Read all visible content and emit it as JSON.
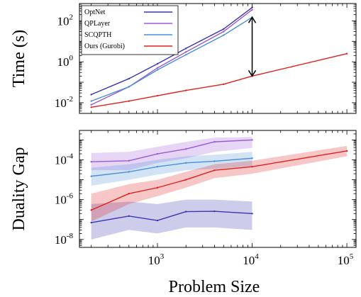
{
  "chart_data": [
    {
      "type": "line",
      "ylabel": "Time (s)",
      "xscale": "log",
      "yscale": "log",
      "xlim": [
        150,
        125000
      ],
      "ylim": [
        0.003,
        700
      ],
      "yticks": [
        {
          "value": 0.01,
          "base": "10",
          "exp": "-2"
        },
        {
          "value": 1,
          "base": "10",
          "exp": "0"
        },
        {
          "value": 100,
          "base": "10",
          "exp": "2"
        }
      ],
      "legend": {
        "position": "top-left"
      },
      "series": [
        {
          "name": "OptNet",
          "color": "#3a35b0",
          "x": [
            200,
            500,
            1000,
            2000,
            5000,
            10000
          ],
          "y": [
            0.025,
            0.15,
            0.8,
            4.5,
            40,
            450
          ]
        },
        {
          "name": "QPLayer",
          "color": "#9b59d6",
          "x": [
            200,
            500,
            1000,
            2000,
            5000,
            10000
          ],
          "y": [
            0.008,
            0.06,
            0.5,
            3,
            30,
            350
          ]
        },
        {
          "name": "SCQPTH",
          "color": "#4a90d9",
          "x": [
            200,
            500,
            1000,
            2000,
            5000,
            10000
          ],
          "y": [
            0.012,
            0.06,
            0.4,
            2.2,
            20,
            150
          ]
        },
        {
          "name": "Ours (Gurobi)",
          "color": "#e02020",
          "x": [
            200,
            500,
            1000,
            2000,
            5000,
            10000,
            100000
          ],
          "y": [
            0.006,
            0.012,
            0.022,
            0.04,
            0.08,
            0.2,
            2.5
          ]
        }
      ],
      "annotations": [
        {
          "type": "double-arrow",
          "x": 10000,
          "y_from": 0.2,
          "y_to": 150
        }
      ]
    },
    {
      "type": "area",
      "xlabel": "Problem Size",
      "ylabel": "Duality Gap",
      "xscale": "log",
      "yscale": "log",
      "xlim": [
        150,
        125000
      ],
      "ylim": [
        4e-09,
        0.003
      ],
      "xticks": [
        {
          "value": 1000,
          "base": "10",
          "exp": "3"
        },
        {
          "value": 10000,
          "base": "10",
          "exp": "4"
        },
        {
          "value": 100000,
          "base": "10",
          "exp": "5"
        }
      ],
      "yticks": [
        {
          "value": 1e-08,
          "base": "10",
          "exp": "-8"
        },
        {
          "value": 1e-06,
          "base": "10",
          "exp": "-6"
        },
        {
          "value": 0.0001,
          "base": "10",
          "exp": "-4"
        }
      ],
      "series": [
        {
          "name": "OptNet",
          "color": "#3a35b0",
          "x": [
            200,
            500,
            1000,
            2000,
            4000,
            10000
          ],
          "y": [
            7e-08,
            1.5e-07,
            9e-08,
            2.5e-07,
            2.6e-07,
            2e-07
          ],
          "lower": [
            1e-08,
            3e-08,
            2e-08,
            4e-08,
            4e-08,
            3e-08
          ],
          "upper": [
            6e-07,
            8e-07,
            6e-07,
            1e-06,
            1e-06,
            8e-07
          ]
        },
        {
          "name": "QPLayer",
          "color": "#9b59d6",
          "x": [
            200,
            500,
            1000,
            2000,
            4000,
            10000
          ],
          "y": [
            8e-05,
            9e-05,
            0.0002,
            0.00035,
            0.0008,
            0.001
          ],
          "lower": [
            3e-05,
            3e-05,
            7e-05,
            0.00012,
            0.00025,
            0.0004
          ],
          "upper": [
            0.00022,
            0.00025,
            0.00045,
            0.0008,
            0.0013,
            0.0014
          ]
        },
        {
          "name": "SCQPTH",
          "color": "#4a90d9",
          "x": [
            200,
            500,
            1000,
            2000,
            4000,
            10000
          ],
          "y": [
            1.5e-05,
            2.5e-05,
            4.5e-05,
            7e-05,
            8.5e-05,
            0.00012
          ],
          "lower": [
            5e-06,
            1e-05,
            1.8e-05,
            3e-05,
            3.5e-05,
            5e-05
          ],
          "upper": [
            4e-05,
            6e-05,
            0.0001,
            0.00015,
            0.00018,
            0.00025
          ]
        },
        {
          "name": "Ours (Gurobi)",
          "color": "#e02020",
          "x": [
            200,
            500,
            1000,
            2000,
            4000,
            10000,
            100000
          ],
          "y": [
            3e-07,
            2e-06,
            4e-06,
            1e-05,
            3e-05,
            4.5e-05,
            0.00028
          ],
          "lower": [
            8e-08,
            6e-07,
            1.5e-06,
            4e-06,
            1.2e-05,
            2e-05,
            0.00015
          ],
          "upper": [
            2e-06,
            6e-06,
            1e-05,
            2.5e-05,
            6e-05,
            9e-05,
            0.0005
          ]
        }
      ]
    }
  ]
}
